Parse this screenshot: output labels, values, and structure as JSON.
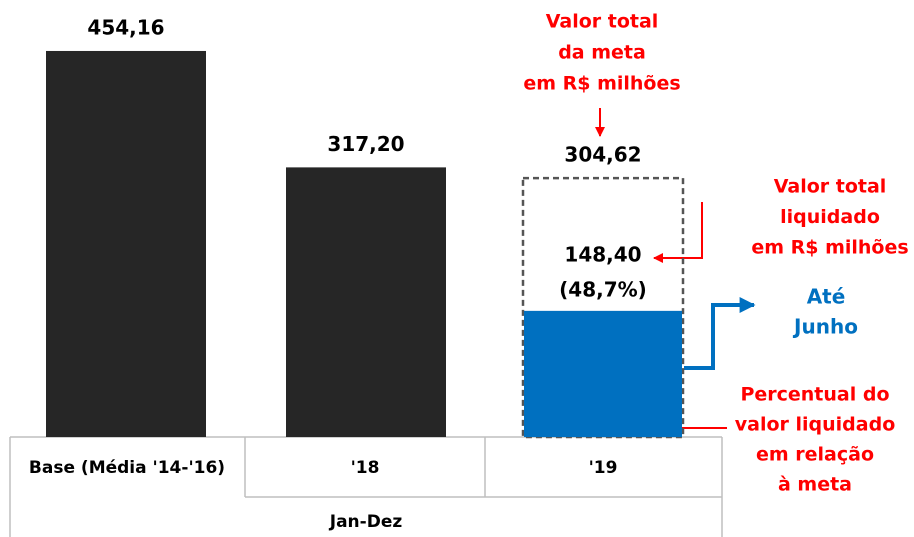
{
  "chart_data": {
    "type": "bar",
    "categories": [
      "Base (Média '14-'16)",
      "'18",
      "'19"
    ],
    "values": [
      454.16,
      317.2,
      304.62
    ],
    "value_labels": [
      "454,16",
      "317,20",
      "304,62"
    ],
    "color": "#262626",
    "goal_index_color": "#555555",
    "achieved": {
      "values": [
        null,
        null,
        148.4
      ],
      "value_labels": [
        null,
        null,
        "148,40"
      ],
      "percent": [
        null,
        null,
        {
          "value": 48.7,
          "label": "(48,7%)"
        }
      ],
      "color": "#0070c0"
    },
    "group_label": "Jan-Dez",
    "ylim": [
      0,
      500
    ],
    "annotations": [
      {
        "lines": [
          "Valor total",
          "da meta",
          "em R$ milhões"
        ],
        "color": "#ff0000"
      },
      {
        "lines": [
          "Valor total",
          "liquidado",
          "em R$ milhões"
        ],
        "color": "#ff0000"
      },
      {
        "lines": [
          "Até",
          "Junho"
        ],
        "color": "#0070c0"
      },
      {
        "lines": [
          "Percentual do",
          "valor liquidado",
          "em relação",
          "à meta"
        ],
        "color": "#ff0000"
      }
    ]
  }
}
